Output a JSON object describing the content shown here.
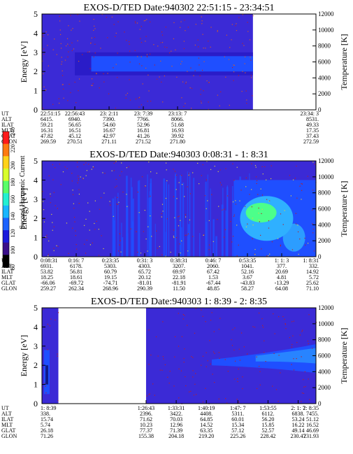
{
  "colors": {
    "background": "#3b2ad6",
    "deep": "#2a1cc8",
    "blue": "#1f4fff",
    "cyan": "#2fb0ff",
    "green": "#4cff8a",
    "noise": "#b7202a",
    "axis": "#000000"
  },
  "chart_data": [
    {
      "type": "heatmap",
      "title": "EXOS-D/TED   Date:940302  22:51:15 - 23:34:51",
      "ylabel": "Energy [eV]",
      "ylim": [
        0,
        5
      ],
      "yticks": [
        "0",
        "1",
        "2",
        "3",
        "4",
        "5"
      ],
      "y2label": "Temperature [K]",
      "y2lim": [
        0,
        12000
      ],
      "y2ticks": [
        "0",
        "2000",
        "4000",
        "6000",
        "8000",
        "10000",
        "12000"
      ],
      "data_extent_fraction": [
        0,
        0.77
      ],
      "band": {
        "x_start_fraction": 0.18,
        "x_end_fraction": 0.77,
        "energy_low": 2.0,
        "energy_high": 2.8
      },
      "ephemeris": {
        "labels": [
          "UT",
          "ALT",
          "ILAT",
          "MLT",
          "GLAT",
          "GLON"
        ],
        "columns": [
          [
            "22:51:15",
            "6415.",
            "59.21",
            "16.31",
            "47.82",
            "269.59"
          ],
          [
            "22:56:43",
            "6940.",
            "56.65",
            "16.51",
            "45.12",
            "270.51"
          ],
          [
            "23: 2:11",
            "7390.",
            "54.60",
            "16.67",
            "42.97",
            "271.11"
          ],
          [
            "23: 7:39",
            "7766.",
            "52.96",
            "16.81",
            "41.26",
            "271.52"
          ],
          [
            "23:13: 7",
            "8066.",
            "51.68",
            "16.93",
            "39.92",
            "271.80"
          ],
          [
            "23:34: 3",
            "8531.",
            "49.33",
            "17.35",
            "37.43",
            "272.59"
          ]
        ]
      }
    },
    {
      "type": "heatmap",
      "title": "EXOS-D/TED   Date:940303  0:08:31 - 1: 8:31",
      "ylabel": "Energy [eV]",
      "ylim": [
        0,
        5
      ],
      "yticks": [
        "0",
        "1",
        "2",
        "3",
        "4",
        "5"
      ],
      "y2label": "Temperature [K]",
      "y2lim": [
        0,
        12000
      ],
      "y2ticks": [
        "0",
        "2000",
        "4000",
        "6000",
        "8000",
        "10000",
        "12000"
      ],
      "colorbar": {
        "label": "Second Harmonic Current",
        "range": [
          80,
          240
        ],
        "ticks": [
          "80",
          "100",
          "120",
          "140",
          "160",
          "180",
          "200",
          "220",
          "240"
        ],
        "colors": [
          "#000000",
          "#3a0f8a",
          "#1b1bdc",
          "#1c63ff",
          "#19b6ff",
          "#22f0d2",
          "#59ff68",
          "#d8ff2a",
          "#ffd21a",
          "#ff7a10",
          "#ff1a1a"
        ]
      },
      "ephemeris": {
        "labels": [
          "UT",
          "ALT",
          "ILAT",
          "MLT",
          "GLAT",
          "GLON"
        ],
        "columns": [
          [
            "0:08:31",
            "6931.",
            "53.82",
            "18.25",
            "-66.06",
            "259.27"
          ],
          [
            "0:16: 7",
            "6178.",
            "56.81",
            "18.61",
            "-69.72",
            "262.34"
          ],
          [
            "0:23:35",
            "5303.",
            "60.79",
            "19.15",
            "-74.71",
            "268.96"
          ],
          [
            "0:31: 3",
            "4303.",
            "65.72",
            "20.12",
            "-81.01",
            "290.39"
          ],
          [
            "0:38:31",
            "3207.",
            "69.97",
            "22.18",
            "-81.91",
            "11.50"
          ],
          [
            "0:46: 7",
            "2060.",
            "67.42",
            "1.53",
            "-67.44",
            "48.85"
          ],
          [
            "0:53:35",
            "1041.",
            "52.16",
            "3.67",
            "-43.83",
            "58.27"
          ],
          [
            "1: 1: 3",
            "377.",
            "20.69",
            "4.81",
            "-13.29",
            "64.08"
          ],
          [
            "1: 8:31",
            "332.",
            "14.92",
            "5.72",
            "25.62",
            "71.10"
          ]
        ]
      }
    },
    {
      "type": "heatmap",
      "title": "EXOS-D/TED   Date:940303  1: 8:39 - 2: 8:35",
      "ylabel": "Energy [eV]",
      "ylim": [
        0,
        5
      ],
      "yticks": [
        "0",
        "1",
        "2",
        "3",
        "4",
        "5"
      ],
      "y2label": "Temperature [K]",
      "y2lim": [
        0,
        12000
      ],
      "y2ticks": [
        "0",
        "2000",
        "4000",
        "6000",
        "8000",
        "10000",
        "12000"
      ],
      "data_gap_fraction": [
        0.06,
        0.38
      ],
      "ephemeris": {
        "labels": [
          "UT",
          "ALT",
          "ILAT",
          "MLT",
          "GLAT",
          "GLON"
        ],
        "columns": [
          [
            "1: 8:39",
            "338.",
            "15.74",
            "5.74",
            "26.18",
            "71.26"
          ],
          [
            "1:26:43",
            "2396.",
            "71.62",
            "10.23",
            "77.37",
            "155.38"
          ],
          [
            "1:33:31",
            "3422.",
            "70.03",
            "12.96",
            "71.39",
            "204.18"
          ],
          [
            "1:40:19",
            "4408.",
            "64.85",
            "14.52",
            "63.35",
            "219.20"
          ],
          [
            "1:47: 7",
            "5311.",
            "60.01",
            "15.34",
            "57.12",
            "225.26"
          ],
          [
            "1:53:55",
            "6112.",
            "56.20",
            "15.85",
            "52.57",
            "228.42"
          ],
          [
            "2: 1: 7",
            "6838.",
            "53.24",
            "16.22",
            "49.14",
            "230.47"
          ],
          [
            "2: 8:35",
            "7455.",
            "51.12",
            "16.52",
            "46.69",
            "231.93"
          ]
        ]
      }
    }
  ]
}
